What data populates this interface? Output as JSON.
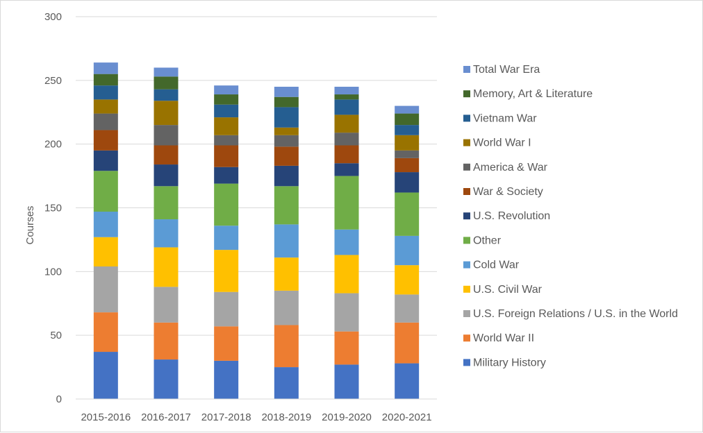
{
  "chart_data": {
    "type": "bar",
    "stacked": true,
    "title": "",
    "xlabel": "",
    "ylabel": "Courses",
    "ylim": [
      0,
      300
    ],
    "yticks": [
      0,
      50,
      100,
      150,
      200,
      250,
      300
    ],
    "grid": true,
    "legend_position": "right",
    "categories": [
      "2015-2016",
      "2016-2017",
      "2017-2018",
      "2018-2019",
      "2019-2020",
      "2020-2021"
    ],
    "series": [
      {
        "name": "Military History",
        "color": "#4472c4",
        "values": [
          37,
          31,
          30,
          25,
          27,
          28
        ]
      },
      {
        "name": "World War II",
        "color": "#ed7d31",
        "values": [
          31,
          29,
          27,
          33,
          26,
          32
        ]
      },
      {
        "name": "U.S. Foreign Relations / U.S. in the World",
        "color": "#a5a5a5",
        "values": [
          36,
          28,
          27,
          27,
          30,
          22
        ]
      },
      {
        "name": "U.S. Civil War",
        "color": "#ffc000",
        "values": [
          23,
          31,
          33,
          26,
          30,
          23
        ]
      },
      {
        "name": "Cold War",
        "color": "#5b9bd5",
        "values": [
          20,
          22,
          19,
          26,
          20,
          23
        ]
      },
      {
        "name": "Other",
        "color": "#70ad47",
        "values": [
          32,
          26,
          33,
          30,
          42,
          34
        ]
      },
      {
        "name": "U.S. Revolution",
        "color": "#264478",
        "values": [
          16,
          17,
          13,
          16,
          10,
          16
        ]
      },
      {
        "name": "War & Society",
        "color": "#9e480e",
        "values": [
          16,
          15,
          17,
          15,
          14,
          11
        ]
      },
      {
        "name": "America & War",
        "color": "#636363",
        "values": [
          13,
          16,
          8,
          9,
          10,
          6
        ]
      },
      {
        "name": "World War I",
        "color": "#997300",
        "values": [
          11,
          19,
          14,
          6,
          14,
          12
        ]
      },
      {
        "name": "Vietnam War",
        "color": "#255e91",
        "values": [
          11,
          9,
          10,
          16,
          12,
          8
        ]
      },
      {
        "name": "Memory, Art & Literature",
        "color": "#43682b",
        "values": [
          9,
          10,
          8,
          8,
          4,
          9
        ]
      },
      {
        "name": "Total War Era",
        "color": "#698ed0",
        "values": [
          9,
          7,
          7,
          8,
          6,
          6
        ]
      }
    ]
  }
}
